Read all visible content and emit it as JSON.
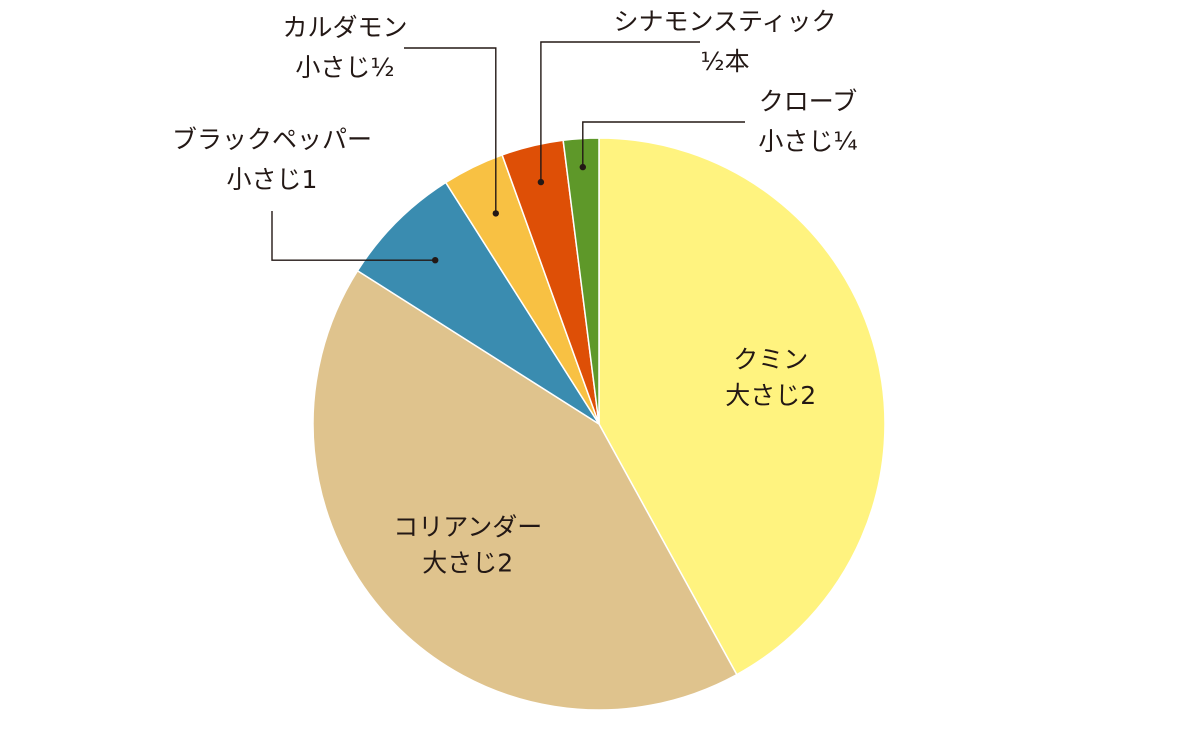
{
  "chart_data": {
    "type": "pie",
    "start": "top",
    "direction": "clockwise",
    "slices": [
      {
        "name": "クミン",
        "amount": "大さじ2",
        "value": 42,
        "color": "#FFF37F"
      },
      {
        "name": "コリアンダー",
        "amount": "大さじ2",
        "value": 42,
        "color": "#DFC38D"
      },
      {
        "name": "ブラックペッパー",
        "amount": "小さじ1",
        "value": 7,
        "color": "#3A8CB0"
      },
      {
        "name": "カルダモン",
        "amount": "小さじ½",
        "value": 3.5,
        "color": "#F8C143"
      },
      {
        "name": "シナモンスティック",
        "amount": "½本",
        "value": 3.5,
        "color": "#DE4F06"
      },
      {
        "name": "クローブ",
        "amount": "小さじ¼",
        "value": 2,
        "color": "#5E9829"
      }
    ]
  }
}
